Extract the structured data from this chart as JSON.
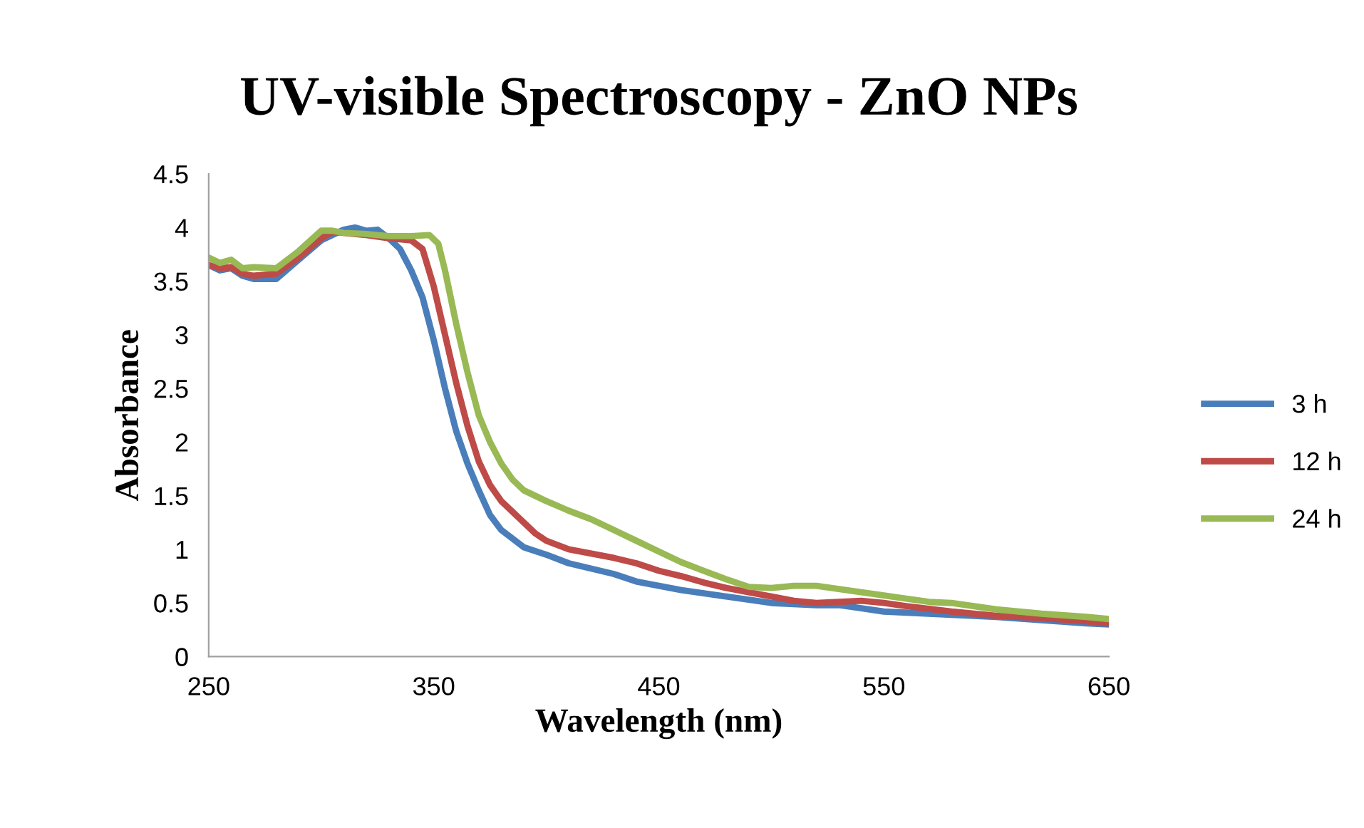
{
  "chart_data": {
    "type": "line",
    "title": "UV-visible Spectroscopy - ZnO NPs",
    "xlabel": "Wavelength (nm)",
    "ylabel": "Absorbance",
    "xlim": [
      250,
      650
    ],
    "xticks": [
      250,
      350,
      450,
      550,
      650
    ],
    "ylim": [
      0,
      4.5
    ],
    "yticks": [
      0,
      0.5,
      1,
      1.5,
      2,
      2.5,
      3,
      3.5,
      4,
      4.5
    ],
    "grid": false,
    "legend": "right",
    "marker": "none",
    "line_style": "solid",
    "series": [
      {
        "name": "3 h",
        "color": "#4a7ebb",
        "x": [
          250,
          255,
          260,
          265,
          270,
          280,
          290,
          300,
          310,
          315,
          320,
          325,
          330,
          335,
          340,
          345,
          350,
          355,
          360,
          365,
          370,
          375,
          380,
          390,
          400,
          410,
          420,
          430,
          440,
          450,
          460,
          470,
          480,
          490,
          500,
          510,
          520,
          530,
          540,
          550,
          560,
          580,
          600,
          620,
          640,
          650
        ],
        "values": [
          3.65,
          3.6,
          3.62,
          3.55,
          3.52,
          3.52,
          3.7,
          3.88,
          3.98,
          4.0,
          3.97,
          3.98,
          3.9,
          3.8,
          3.6,
          3.35,
          2.95,
          2.5,
          2.1,
          1.8,
          1.55,
          1.32,
          1.18,
          1.02,
          0.95,
          0.87,
          0.82,
          0.77,
          0.7,
          0.66,
          0.62,
          0.59,
          0.56,
          0.53,
          0.5,
          0.49,
          0.48,
          0.48,
          0.45,
          0.42,
          0.41,
          0.39,
          0.37,
          0.34,
          0.31,
          0.3
        ]
      },
      {
        "name": "12 h",
        "color": "#be4b48",
        "x": [
          250,
          255,
          260,
          265,
          270,
          280,
          290,
          300,
          305,
          310,
          320,
          330,
          340,
          345,
          350,
          355,
          360,
          365,
          370,
          375,
          380,
          385,
          390,
          395,
          400,
          410,
          420,
          430,
          440,
          450,
          460,
          470,
          480,
          490,
          500,
          510,
          520,
          530,
          540,
          550,
          560,
          580,
          600,
          620,
          640,
          650
        ],
        "values": [
          3.65,
          3.62,
          3.63,
          3.57,
          3.55,
          3.57,
          3.72,
          3.9,
          3.96,
          3.95,
          3.93,
          3.9,
          3.88,
          3.8,
          3.45,
          3.0,
          2.55,
          2.15,
          1.82,
          1.6,
          1.45,
          1.35,
          1.25,
          1.15,
          1.08,
          1.0,
          0.96,
          0.92,
          0.87,
          0.8,
          0.75,
          0.69,
          0.64,
          0.6,
          0.56,
          0.52,
          0.5,
          0.51,
          0.52,
          0.5,
          0.47,
          0.42,
          0.38,
          0.36,
          0.33,
          0.31
        ]
      },
      {
        "name": "24 h",
        "color": "#98b954",
        "x": [
          250,
          255,
          260,
          265,
          270,
          280,
          290,
          300,
          305,
          310,
          320,
          330,
          340,
          348,
          352,
          355,
          360,
          365,
          370,
          375,
          380,
          385,
          390,
          400,
          410,
          420,
          430,
          440,
          450,
          460,
          470,
          480,
          490,
          500,
          510,
          520,
          530,
          540,
          550,
          560,
          570,
          580,
          600,
          620,
          640,
          650
        ],
        "values": [
          3.72,
          3.67,
          3.7,
          3.62,
          3.63,
          3.62,
          3.78,
          3.97,
          3.97,
          3.95,
          3.94,
          3.92,
          3.92,
          3.93,
          3.85,
          3.6,
          3.1,
          2.65,
          2.25,
          2.0,
          1.8,
          1.65,
          1.55,
          1.45,
          1.36,
          1.28,
          1.18,
          1.08,
          0.98,
          0.88,
          0.8,
          0.72,
          0.65,
          0.64,
          0.66,
          0.66,
          0.63,
          0.6,
          0.57,
          0.54,
          0.51,
          0.5,
          0.44,
          0.4,
          0.37,
          0.35
        ]
      }
    ]
  }
}
